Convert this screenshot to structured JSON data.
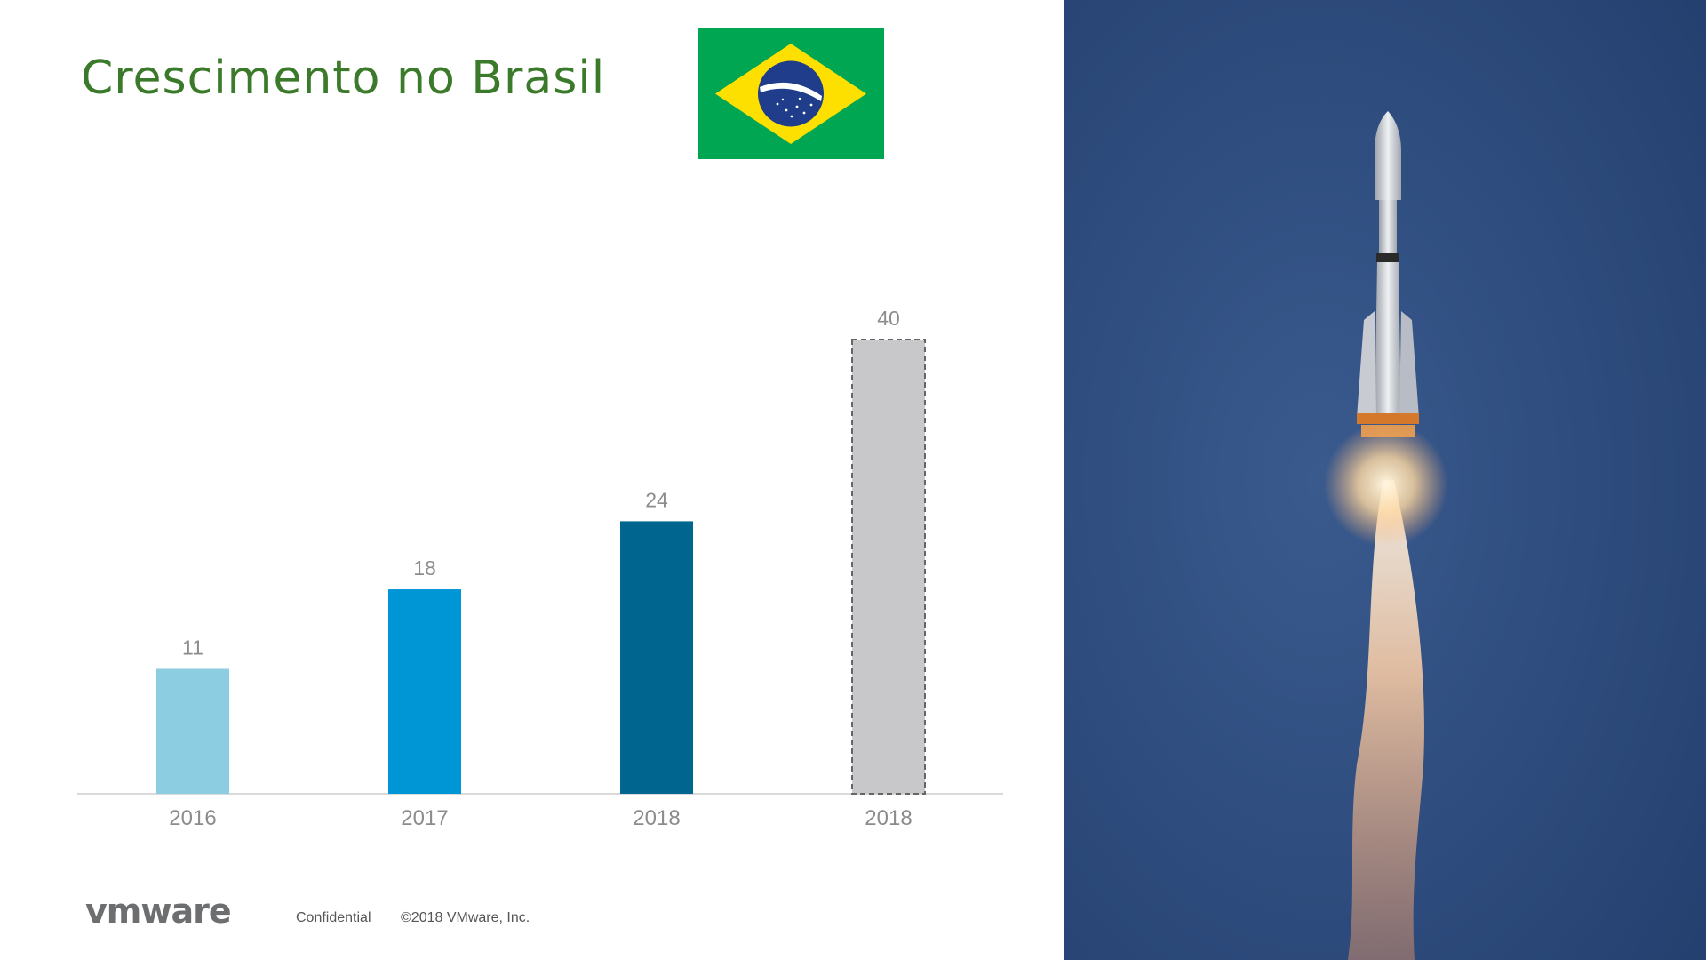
{
  "slide": {
    "title": "Crescimento no Brasil"
  },
  "footer": {
    "logo_text": "vmware",
    "confidential": "Confidential",
    "copyright": "©2018 VMware, Inc."
  },
  "photo": {
    "subject": "rocket-launch",
    "sky_color": "#2b4a7c"
  },
  "colors": {
    "title": "#3a7a2a",
    "axis": "#d9d9d9",
    "label": "#8c8c8c"
  },
  "chart_data": {
    "type": "bar",
    "categories": [
      "2016",
      "2017",
      "2018",
      "2018"
    ],
    "values": [
      11,
      18,
      24,
      40
    ],
    "value_labels": [
      "11",
      "18",
      "24",
      "40"
    ],
    "bar_colors": [
      "#8ccde2",
      "#0096d6",
      "#006690",
      "#c8c8ca"
    ],
    "projected": [
      false,
      false,
      false,
      true
    ],
    "title": "",
    "xlabel": "",
    "ylabel": "",
    "ylim": [
      0,
      40
    ],
    "grid": false,
    "legend": "none"
  }
}
